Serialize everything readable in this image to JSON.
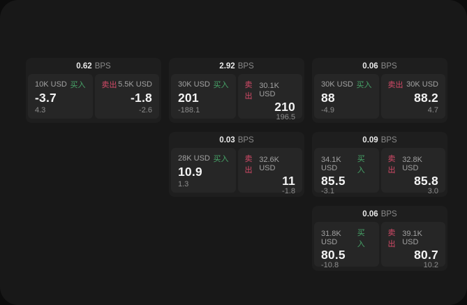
{
  "labels": {
    "buy": "买入",
    "sell": "卖出",
    "bps_unit": "BPS"
  },
  "colors": {
    "buy_green": "#47a468",
    "sell_red": "#d44a68",
    "window_bg": "#181818",
    "card_bg": "#1e1e1e",
    "panel_bg": "#262626"
  },
  "cards": [
    {
      "bps": "0.62",
      "buy": {
        "size": "10K USD",
        "value": "-3.7",
        "delta": "4.3"
      },
      "sell": {
        "size": "5.5K USD",
        "value": "-1.8",
        "delta": "-2.6"
      }
    },
    {
      "bps": "2.92",
      "buy": {
        "size": "30K USD",
        "value": "201",
        "delta": "-188.1"
      },
      "sell": {
        "size": "30.1K USD",
        "value": "210",
        "delta": "196.5"
      }
    },
    {
      "bps": "0.06",
      "buy": {
        "size": "30K USD",
        "value": "88",
        "delta": "-4.9"
      },
      "sell": {
        "size": "30K USD",
        "value": "88.2",
        "delta": "4.7"
      }
    },
    {
      "bps": "0.03",
      "buy": {
        "size": "28K USD",
        "value": "10.9",
        "delta": "1.3"
      },
      "sell": {
        "size": "32.6K USD",
        "value": "11",
        "delta": "-1.8"
      }
    },
    {
      "bps": "0.09",
      "buy": {
        "size": "34.1K USD",
        "value": "85.5",
        "delta": "-3.1"
      },
      "sell": {
        "size": "32.8K USD",
        "value": "85.8",
        "delta": "3.0"
      }
    },
    {
      "bps": "0.06",
      "buy": {
        "size": "31.8K USD",
        "value": "80.5",
        "delta": "-10.8"
      },
      "sell": {
        "size": "39.1K USD",
        "value": "80.7",
        "delta": "10.2"
      }
    }
  ]
}
